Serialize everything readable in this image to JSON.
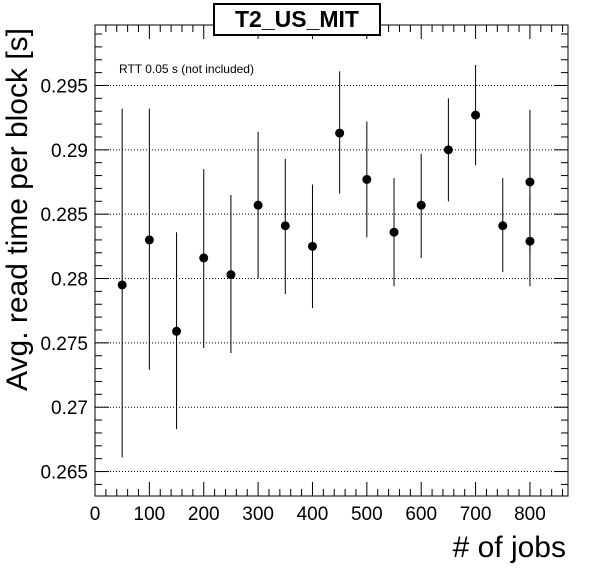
{
  "chart_data": {
    "type": "scatter",
    "title": "T2_US_MIT",
    "xlabel": "# of jobs",
    "ylabel": "Avg. read time per block [s]",
    "annotation": "RTT 0.05 s (not included)",
    "xlim": [
      0,
      870
    ],
    "ylim": [
      0.2631,
      0.2997
    ],
    "x_ticks": [
      0,
      100,
      200,
      300,
      400,
      500,
      600,
      700,
      800
    ],
    "x_tick_labels": [
      "0",
      "100",
      "200",
      "300",
      "400",
      "500",
      "600",
      "700",
      "800"
    ],
    "y_ticks": [
      0.265,
      0.27,
      0.275,
      0.28,
      0.285,
      0.29,
      0.295
    ],
    "y_tick_labels": [
      "0.265",
      "0.27",
      "0.275",
      "0.28",
      "0.285",
      "0.29",
      "0.295"
    ],
    "grid": "horizontal dotted",
    "legend": "none",
    "marker_color": "#000000",
    "series": [
      {
        "points": [
          {
            "x": 50,
            "y": 0.2795,
            "lo": 0.2661,
            "hi": 0.2932
          },
          {
            "x": 100,
            "y": 0.283,
            "lo": 0.2729,
            "hi": 0.2932
          },
          {
            "x": 150,
            "y": 0.2759,
            "lo": 0.2683,
            "hi": 0.2836
          },
          {
            "x": 200,
            "y": 0.2816,
            "lo": 0.2746,
            "hi": 0.2885
          },
          {
            "x": 250,
            "y": 0.2803,
            "lo": 0.2742,
            "hi": 0.2865
          },
          {
            "x": 300,
            "y": 0.2857,
            "lo": 0.28,
            "hi": 0.2914
          },
          {
            "x": 350,
            "y": 0.2841,
            "lo": 0.2788,
            "hi": 0.2893
          },
          {
            "x": 400,
            "y": 0.2825,
            "lo": 0.2777,
            "hi": 0.2873
          },
          {
            "x": 450,
            "y": 0.2913,
            "lo": 0.2866,
            "hi": 0.2961
          },
          {
            "x": 500,
            "y": 0.2877,
            "lo": 0.2832,
            "hi": 0.2922
          },
          {
            "x": 550,
            "y": 0.2836,
            "lo": 0.2794,
            "hi": 0.2878
          },
          {
            "x": 600,
            "y": 0.2857,
            "lo": 0.2816,
            "hi": 0.2897
          },
          {
            "x": 650,
            "y": 0.29,
            "lo": 0.286,
            "hi": 0.294
          },
          {
            "x": 700,
            "y": 0.2927,
            "lo": 0.2888,
            "hi": 0.2966
          },
          {
            "x": 750,
            "y": 0.2841,
            "lo": 0.2805,
            "hi": 0.2878
          },
          {
            "x": 800,
            "y": 0.2829,
            "lo": 0.2794,
            "hi": 0.2865
          },
          {
            "x": 800,
            "y": 0.2875,
            "lo": 0.282,
            "hi": 0.2931
          }
        ]
      }
    ]
  }
}
